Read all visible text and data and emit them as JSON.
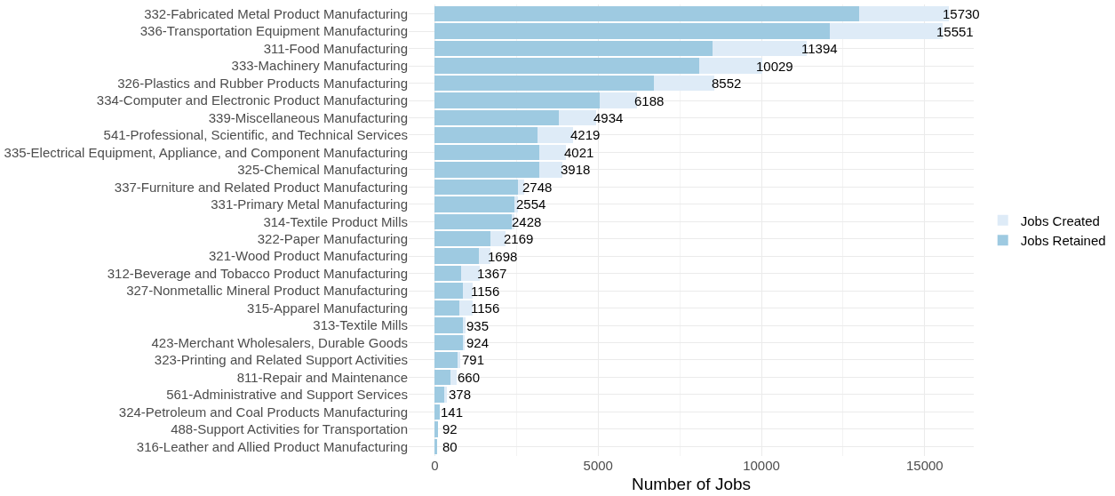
{
  "chart_data": {
    "type": "bar",
    "orientation": "horizontal",
    "stacked": true,
    "xlabel": "Number of Jobs",
    "categories": [
      "332-Fabricated Metal Product Manufacturing",
      "336-Transportation Equipment Manufacturing",
      "311-Food Manufacturing",
      "333-Machinery Manufacturing",
      "326-Plastics and Rubber Products Manufacturing",
      "334-Computer and Electronic Product Manufacturing",
      "339-Miscellaneous Manufacturing",
      "541-Professional, Scientific, and Technical Services",
      "335-Electrical Equipment, Appliance, and Component Manufacturing",
      "325-Chemical Manufacturing",
      "337-Furniture and Related Product Manufacturing",
      "331-Primary Metal Manufacturing",
      "314-Textile Product Mills",
      "322-Paper Manufacturing",
      "321-Wood Product Manufacturing",
      "312-Beverage and Tobacco Product Manufacturing",
      "327-Nonmetallic Mineral Product Manufacturing",
      "315-Apparel Manufacturing",
      "313-Textile Mills",
      "423-Merchant Wholesalers, Durable Goods",
      "323-Printing and Related Support Activities",
      "811-Repair and Maintenance",
      "561-Administrative and Support Services",
      "324-Petroleum and Coal Products Manufacturing",
      "488-Support Activities for Transportation",
      "316-Leather and Allied Product Manufacturing"
    ],
    "series": [
      {
        "name": "Jobs Retained",
        "color": "#9ecae1",
        "values": [
          13000,
          12100,
          8500,
          8100,
          6700,
          5050,
          3800,
          3150,
          3200,
          3200,
          2550,
          2450,
          2350,
          1700,
          1350,
          800,
          850,
          750,
          850,
          850,
          700,
          470,
          300,
          141,
          92,
          80
        ]
      },
      {
        "name": "Jobs Created",
        "color": "#deebf7",
        "values": [
          2730,
          3451,
          2894,
          1929,
          1852,
          1138,
          1134,
          1069,
          821,
          718,
          198,
          104,
          78,
          469,
          348,
          567,
          306,
          406,
          85,
          74,
          91,
          190,
          78,
          null,
          null,
          null
        ]
      }
    ],
    "totals": [
      "15730",
      "15551",
      "11394",
      "10029",
      "8552",
      "6188",
      "4934",
      "4219",
      "4021",
      "3918",
      "2748",
      "2554",
      "2428",
      "2169",
      "1698",
      "1367",
      "1156",
      "1156",
      "935",
      "924",
      "791",
      "660",
      "378",
      "141",
      "92",
      "80"
    ],
    "xlim": [
      -800,
      16500
    ],
    "xticks": [
      0,
      5000,
      10000,
      15000
    ],
    "grid": true,
    "legend": "right"
  }
}
